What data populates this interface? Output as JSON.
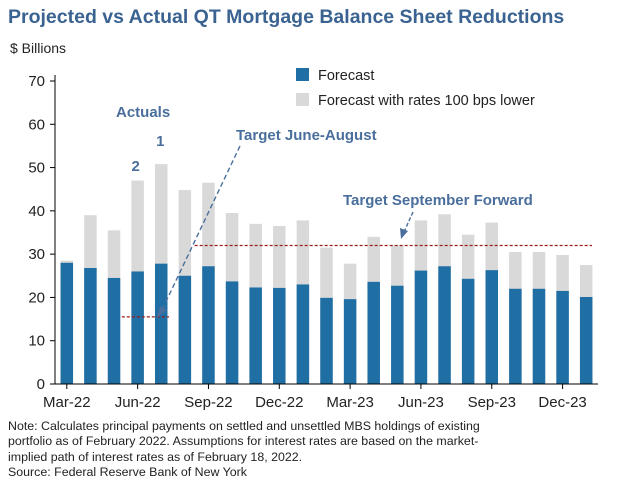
{
  "chart_data": {
    "type": "bar",
    "title": "Projected vs Actual QT Mortgage Balance Sheet Reductions",
    "ylabel": "$ Billions",
    "ylim": [
      0,
      70
    ],
    "yticks": [
      0,
      10,
      20,
      30,
      40,
      50,
      60,
      70
    ],
    "x_tick_labels": [
      "Mar-22",
      "Jun-22",
      "Sep-22",
      "Dec-22",
      "Mar-23",
      "Jun-23",
      "Sep-23",
      "Dec-23"
    ],
    "categories": [
      "Mar-22",
      "Apr-22",
      "May-22",
      "Jun-22",
      "Jul-22",
      "Aug-22",
      "Sep-22",
      "Oct-22",
      "Nov-22",
      "Dec-22",
      "Jan-23",
      "Feb-23",
      "Mar-23",
      "Apr-23",
      "May-23",
      "Jun-23",
      "Jul-23",
      "Aug-23",
      "Sep-23",
      "Oct-23",
      "Nov-23",
      "Dec-23",
      "Jan-24"
    ],
    "stacking": "overlay",
    "series": [
      {
        "name": "Forecast with rates 100 bps lower",
        "color": "#d9d9d9",
        "values": [
          28.5,
          39,
          35.5,
          47,
          50.8,
          44.8,
          46.5,
          39.5,
          37,
          36.5,
          37.8,
          31.5,
          27.8,
          34,
          32,
          37.8,
          39.2,
          34.5,
          37.3,
          30.5,
          30.5,
          29.8,
          27.5
        ]
      },
      {
        "name": "Forecast",
        "color": "#1f6ea4",
        "values": [
          28,
          26.8,
          24.5,
          26,
          27.8,
          25,
          27.2,
          23.7,
          22.3,
          22.2,
          23,
          19.9,
          19.6,
          23.6,
          22.7,
          26.2,
          27.2,
          24.3,
          26.3,
          22,
          22,
          21.5,
          20.1
        ]
      }
    ],
    "reference_lines": [
      {
        "value": 15.5,
        "from": "Jun-22",
        "to": "Jul-22",
        "color": "#9b1c1c",
        "style": "dashed"
      },
      {
        "value": 32,
        "from": "Sep-22",
        "to": "Jan-24",
        "color": "#9b1c1c",
        "style": "dashed"
      }
    ],
    "annotations": [
      {
        "text": "Actuals"
      },
      {
        "text": "1"
      },
      {
        "text": "2"
      },
      {
        "text": "Target June-August"
      },
      {
        "text": "Target September Forward"
      }
    ],
    "legend_position": "top-right",
    "grid": false
  },
  "note": {
    "lines": [
      "Note: Calculates principal payments on settled and unsettled MBS holdings of existing",
      "portfolio as of February 2022. Assumptions for interest rates are based on the market-",
      "implied path of interest rates as of February 18, 2022."
    ],
    "source": "Source: Federal Reserve Bank of New York"
  }
}
